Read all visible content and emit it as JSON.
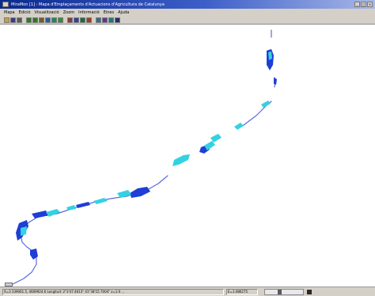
{
  "window": {
    "title": "MiraMon [1] - Mapa d'Emplaçaments d'Actuacions d'Agricultura de Catalunya",
    "buttons": [
      "_",
      "□",
      "×"
    ]
  },
  "menubar": {
    "items": [
      "Mapa",
      "Edició",
      "Visualització",
      "Zoom",
      "Informació",
      "Eines",
      "Ajuda"
    ]
  },
  "toolbar": {
    "tools": [
      {
        "icon": "open-icon",
        "color": "#c8a040"
      },
      {
        "icon": "save-icon",
        "color": "#3a3a8a"
      },
      {
        "icon": "print-icon",
        "color": "#5a5a5a"
      },
      {
        "icon": "zoom-in-icon",
        "color": "#2a7a2a"
      },
      {
        "icon": "zoom-out-icon",
        "color": "#2a7a2a"
      },
      {
        "icon": "pan-icon",
        "color": "#7a5a2a"
      },
      {
        "icon": "full-view-icon",
        "color": "#2a5aa0"
      },
      {
        "icon": "layers-icon",
        "color": "#1a8a5a"
      },
      {
        "icon": "query-icon",
        "color": "#3a8a3a"
      },
      {
        "icon": "measure-icon",
        "color": "#8a3a3a"
      },
      {
        "icon": "select-icon",
        "color": "#3a3aa0"
      },
      {
        "icon": "legend-icon",
        "color": "#1a6a3a"
      },
      {
        "icon": "info-icon",
        "color": "#a03a1a"
      },
      {
        "icon": "grid-icon",
        "color": "#3a6a8a"
      },
      {
        "icon": "export-icon",
        "color": "#5a3a8a"
      },
      {
        "icon": "window-icon",
        "color": "#1a7a7a"
      },
      {
        "icon": "help-icon",
        "color": "#2a2a6a"
      }
    ]
  },
  "map": {
    "colors": {
      "river_line": "#5a6ad8",
      "polygon_dark": "#1e3ed6",
      "polygon_light": "#33d2e2"
    }
  },
  "statusbar": {
    "coordinates": "X=3 339061.5, 4609924.6 Longitud: 2°3'47.4613\" 41°38'15.7004\" z=1:0 ...",
    "scale": "E=1:486275"
  }
}
